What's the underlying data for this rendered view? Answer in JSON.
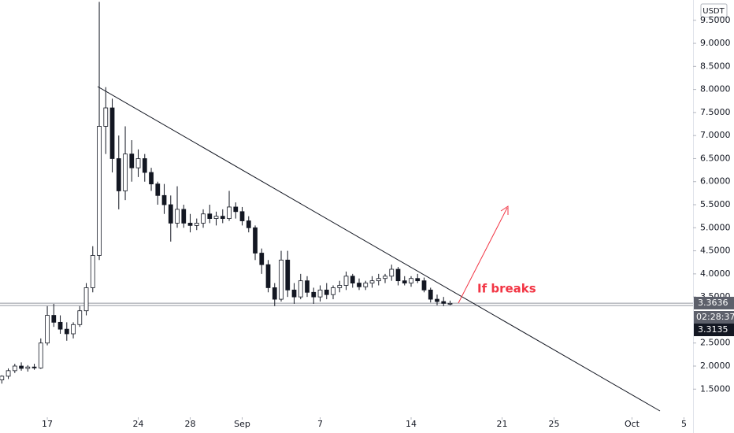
{
  "chart_data": {
    "type": "candlestick",
    "currency": "USDT",
    "color": "#131722",
    "x": [
      13.5,
      14,
      14.5,
      15,
      15.5,
      16,
      16.5,
      17,
      17.5,
      18,
      18.5,
      19,
      19.5,
      20,
      20.5,
      21,
      21.5,
      22,
      22.5,
      23,
      23.5,
      24,
      24.5,
      25,
      25.5,
      26,
      26.5,
      27,
      27.5,
      28,
      28.5,
      29,
      29.5,
      30,
      30.5,
      31,
      31.5,
      32,
      32.5,
      33,
      33.5,
      34,
      34.5,
      35,
      35.5,
      36,
      36.5,
      37,
      37.5,
      38,
      38.5,
      39,
      39.5,
      40,
      40.5,
      41,
      41.5,
      42,
      42.5,
      43,
      43.5,
      44,
      44.5,
      45,
      45.5,
      46,
      46.5,
      47,
      47.5,
      48
    ],
    "open": [
      1.7,
      1.78,
      1.9,
      2.0,
      1.95,
      1.98,
      1.96,
      2.5,
      3.1,
      2.95,
      2.8,
      2.7,
      2.9,
      3.2,
      3.7,
      4.4,
      7.2,
      7.6,
      6.5,
      5.8,
      6.6,
      6.3,
      6.5,
      6.2,
      5.95,
      5.7,
      5.5,
      5.1,
      5.4,
      5.1,
      5.05,
      5.1,
      5.3,
      5.2,
      5.25,
      5.2,
      5.45,
      5.35,
      5.15,
      5.0,
      4.45,
      4.2,
      3.7,
      3.45,
      4.3,
      3.65,
      3.5,
      3.85,
      3.6,
      3.5,
      3.65,
      3.55,
      3.7,
      3.75,
      3.95,
      3.8,
      3.72,
      3.8,
      3.85,
      3.9,
      3.95,
      4.1,
      3.85,
      3.8,
      3.9,
      3.85,
      3.65,
      3.45,
      3.4,
      3.36
    ],
    "high": [
      1.8,
      1.95,
      2.05,
      2.08,
      2.02,
      2.05,
      2.6,
      3.3,
      3.35,
      3.1,
      2.95,
      2.95,
      3.3,
      3.8,
      4.6,
      9.9,
      8.05,
      7.8,
      7.0,
      7.2,
      6.9,
      6.7,
      6.6,
      6.3,
      6.0,
      5.95,
      5.7,
      5.9,
      5.5,
      5.3,
      5.2,
      5.4,
      5.5,
      5.35,
      5.4,
      5.8,
      5.55,
      5.45,
      5.25,
      5.05,
      4.55,
      4.3,
      3.8,
      4.5,
      4.5,
      3.8,
      4.0,
      3.95,
      3.7,
      3.75,
      3.8,
      3.75,
      3.85,
      4.05,
      4.0,
      3.9,
      3.85,
      3.95,
      4.0,
      4.0,
      4.2,
      4.15,
      3.95,
      3.95,
      4.0,
      3.92,
      3.7,
      3.55,
      3.5,
      3.42
    ],
    "low": [
      1.62,
      1.72,
      1.85,
      1.9,
      1.88,
      1.92,
      1.94,
      2.45,
      2.85,
      2.7,
      2.55,
      2.6,
      2.85,
      3.1,
      3.6,
      4.3,
      6.6,
      6.2,
      5.4,
      5.6,
      6.0,
      6.1,
      6.0,
      5.8,
      5.5,
      5.3,
      4.7,
      5.0,
      5.0,
      4.9,
      4.95,
      5.0,
      5.1,
      5.05,
      5.1,
      5.15,
      5.2,
      5.05,
      4.9,
      4.3,
      4.0,
      3.6,
      3.3,
      3.4,
      3.5,
      3.35,
      3.45,
      3.5,
      3.35,
      3.4,
      3.45,
      3.45,
      3.6,
      3.65,
      3.7,
      3.65,
      3.65,
      3.7,
      3.75,
      3.8,
      3.85,
      3.75,
      3.75,
      3.72,
      3.8,
      3.6,
      3.38,
      3.32,
      3.3,
      3.32
    ],
    "close": [
      1.78,
      1.9,
      2.0,
      1.95,
      1.98,
      1.96,
      2.5,
      3.1,
      2.95,
      2.8,
      2.7,
      2.9,
      3.2,
      3.7,
      4.4,
      7.2,
      7.6,
      6.5,
      5.8,
      6.6,
      6.3,
      6.5,
      6.2,
      5.95,
      5.7,
      5.5,
      5.1,
      5.4,
      5.1,
      5.05,
      5.1,
      5.3,
      5.2,
      5.25,
      5.2,
      5.45,
      5.35,
      5.15,
      5.0,
      4.45,
      4.2,
      3.7,
      3.45,
      4.3,
      3.65,
      3.5,
      3.85,
      3.6,
      3.5,
      3.65,
      3.55,
      3.7,
      3.75,
      3.95,
      3.8,
      3.72,
      3.8,
      3.85,
      3.9,
      3.95,
      4.1,
      3.85,
      3.8,
      3.9,
      3.85,
      3.65,
      3.45,
      3.4,
      3.36,
      3.36
    ],
    "xlim": [
      13.36,
      66.7
    ],
    "xticks": [
      {
        "value": 17,
        "label": "17"
      },
      {
        "value": 24,
        "label": "24"
      },
      {
        "value": 28,
        "label": "28"
      },
      {
        "value": 32,
        "label": "Sep"
      },
      {
        "value": 38,
        "label": "7"
      },
      {
        "value": 45,
        "label": "14"
      },
      {
        "value": 52,
        "label": "21"
      },
      {
        "value": 56,
        "label": "25"
      },
      {
        "value": 62,
        "label": "Oct"
      },
      {
        "value": 66,
        "label": "5"
      }
    ],
    "ylim": [
      0.89,
      9.94
    ],
    "yticks": [
      {
        "value": 1.5,
        "label": "1.5000"
      },
      {
        "value": 2,
        "label": "2.0000"
      },
      {
        "value": 2.5,
        "label": "2.5000"
      },
      {
        "value": 3.5,
        "label": "3.5000"
      },
      {
        "value": 4,
        "label": "4.0000"
      },
      {
        "value": 4.5,
        "label": "4.5000"
      },
      {
        "value": 5,
        "label": "5.0000"
      },
      {
        "value": 5.5,
        "label": "5.5000"
      },
      {
        "value": 6,
        "label": "6.0000"
      },
      {
        "value": 6.5,
        "label": "6.5000"
      },
      {
        "value": 7,
        "label": "7.0000"
      },
      {
        "value": 7.5,
        "label": "7.5000"
      },
      {
        "value": 8,
        "label": "8.0000"
      },
      {
        "value": 8.5,
        "label": "8.5000"
      },
      {
        "value": 9,
        "label": "9.0000"
      },
      {
        "value": 9.5,
        "label": "9.5000"
      }
    ],
    "price_lines": [
      3.3636,
      3.3135
    ],
    "countdown": "02:28:37",
    "annotation": "If breaks"
  }
}
